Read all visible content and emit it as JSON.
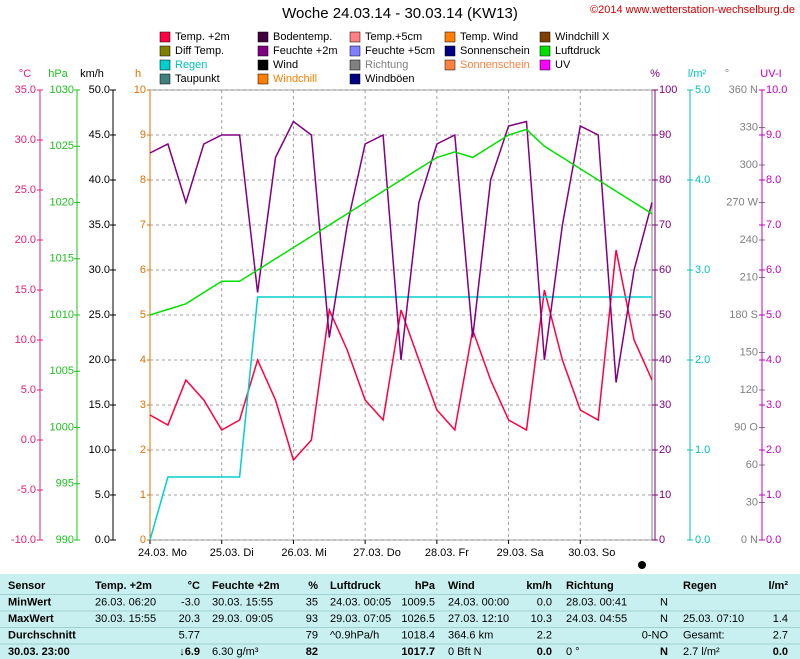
{
  "chart_data": {
    "type": "line",
    "title": "Woche 24.03.14 - 30.03.14 (KW13)",
    "credit": "©2014 www.wetterstation-wechselburg.de",
    "grid": true,
    "x": [
      0,
      6,
      12,
      18,
      24,
      30,
      36,
      42,
      48,
      54,
      60,
      66,
      72,
      78,
      84,
      90,
      96,
      102,
      108,
      114,
      120,
      126,
      132,
      138,
      144,
      150,
      156,
      162,
      168
    ],
    "xlim": [
      0,
      168
    ],
    "xticks": [
      {
        "value": 0,
        "label": "24.03. Mo"
      },
      {
        "value": 24,
        "label": "25.03. Di"
      },
      {
        "value": 48,
        "label": "26.03. Mi"
      },
      {
        "value": 72,
        "label": "27.03. Do"
      },
      {
        "value": 96,
        "label": "28.03. Fr"
      },
      {
        "value": 120,
        "label": "29.03. Sa"
      },
      {
        "value": 144,
        "label": "30.03. So"
      }
    ],
    "axes": [
      {
        "label": "°C",
        "color": "#e0207a",
        "lim": [
          -10,
          35
        ],
        "ticks": [
          {
            "value": 35,
            "label": "35.0"
          },
          {
            "value": 30,
            "label": "30.0"
          },
          {
            "value": 25,
            "label": "25.0"
          },
          {
            "value": 20,
            "label": "20.0"
          },
          {
            "value": 15,
            "label": "15.0"
          },
          {
            "value": 10,
            "label": "10.0"
          },
          {
            "value": 5,
            "label": "5.0"
          },
          {
            "value": 0,
            "label": "0.0"
          },
          {
            "value": -5,
            "label": "-5.0"
          },
          {
            "value": -10,
            "label": "-10.0"
          }
        ]
      },
      {
        "label": "hPa",
        "color": "#20c020",
        "lim": [
          990,
          1030
        ],
        "ticks": [
          1030,
          1025,
          1020,
          1015,
          1010,
          1005,
          1000,
          995,
          990
        ]
      },
      {
        "label": "km/h",
        "color": "#000000",
        "lim": [
          0,
          50
        ],
        "ticks": [
          {
            "value": 50,
            "label": "50.0"
          },
          {
            "value": 45,
            "label": "45.0"
          },
          {
            "value": 40,
            "label": "40.0"
          },
          {
            "value": 35,
            "label": "35.0"
          },
          {
            "value": 30,
            "label": "30.0"
          },
          {
            "value": 25,
            "label": "25.0"
          },
          {
            "value": 20,
            "label": "20.0"
          },
          {
            "value": 15,
            "label": "15.0"
          },
          {
            "value": 10,
            "label": "10.0"
          },
          {
            "value": 5,
            "label": "5.0"
          },
          {
            "value": 0,
            "label": "0.0"
          }
        ]
      },
      {
        "label": "h",
        "color": "#e07000",
        "lim": [
          0,
          10
        ],
        "ticks": [
          10,
          9,
          8,
          7,
          6,
          5,
          4,
          3,
          2,
          1,
          0
        ]
      },
      {
        "label": "%",
        "color": "#800080",
        "lim": [
          0,
          100
        ],
        "ticks": [
          100,
          90,
          80,
          70,
          60,
          50,
          40,
          30,
          20,
          10,
          0
        ]
      },
      {
        "label": "l/m²",
        "color": "#00c0c0",
        "lim": [
          0,
          5
        ],
        "ticks": [
          {
            "value": 5,
            "label": "5.0"
          },
          {
            "value": 4,
            "label": "4.0"
          },
          {
            "value": 3,
            "label": "3.0"
          },
          {
            "value": 2,
            "label": "2.0"
          },
          {
            "value": 1,
            "label": "1.0"
          },
          {
            "value": 0,
            "label": "0.0"
          }
        ]
      },
      {
        "label": "°",
        "color": "#808080",
        "lim": [
          0,
          360
        ],
        "ticks": [
          {
            "value": 360,
            "label": "360 N"
          },
          330,
          300,
          {
            "value": 270,
            "label": "270 W"
          },
          240,
          210,
          {
            "value": 180,
            "label": "180 S"
          },
          150,
          120,
          {
            "value": 90,
            "label": "90 O"
          },
          60,
          30,
          {
            "value": 0,
            "label": "0 N"
          }
        ]
      },
      {
        "label": "UV-I",
        "color": "#c000c0",
        "lim": [
          0,
          10
        ],
        "ticks": [
          {
            "value": 10,
            "label": "10.0"
          },
          {
            "value": 9,
            "label": "9.0"
          },
          {
            "value": 8,
            "label": "8.0"
          },
          {
            "value": 7,
            "label": "7.0"
          },
          {
            "value": 6,
            "label": "6.0"
          },
          {
            "value": 5,
            "label": "5.0"
          },
          {
            "value": 4,
            "label": "4.0"
          },
          {
            "value": 3,
            "label": "3.0"
          },
          {
            "value": 2,
            "label": "2.0"
          },
          {
            "value": 1,
            "label": "1.0"
          },
          {
            "value": 0,
            "label": "0.0"
          }
        ]
      }
    ],
    "series": [
      {
        "name": "Temp. +2m",
        "color": "#ff0040",
        "axis": "°C",
        "values": [
          2.5,
          1.5,
          6,
          4,
          1,
          2,
          8,
          4,
          -2,
          0,
          13,
          9,
          4,
          2,
          13,
          8,
          3,
          1,
          11,
          6,
          2,
          1,
          15,
          8,
          3,
          2,
          19,
          10,
          6
        ]
      },
      {
        "name": "Diff Temp.",
        "color": "#808000"
      },
      {
        "name": "Regen",
        "color": "#00d0d0",
        "text_color": "#00c0c0",
        "axis": "l/m²",
        "values": [
          0,
          0.7,
          0.7,
          0.7,
          0.7,
          0.7,
          2.7,
          2.7,
          2.7,
          2.7,
          2.7,
          2.7,
          2.7,
          2.7,
          2.7,
          2.7,
          2.7,
          2.7,
          2.7,
          2.7,
          2.7,
          2.7,
          2.7,
          2.7,
          2.7,
          2.7,
          2.7,
          2.7,
          2.7
        ]
      },
      {
        "name": "Taupunkt",
        "color": "#408080"
      },
      {
        "name": "Bodentemp.",
        "color": "#400040"
      },
      {
        "name": "Feuchte +2m",
        "color": "#800080",
        "axis": "%",
        "values": [
          86,
          88,
          75,
          88,
          90,
          90,
          55,
          85,
          93,
          90,
          45,
          70,
          88,
          90,
          40,
          75,
          88,
          90,
          45,
          80,
          92,
          93,
          40,
          70,
          92,
          90,
          35,
          60,
          75
        ]
      },
      {
        "name": "Wind",
        "color": "#000000"
      },
      {
        "name": "Windchill",
        "color": "#ff8000",
        "text_color": "#ff8000"
      },
      {
        "name": "Temp.+5cm",
        "color": "#ff8080"
      },
      {
        "name": "Feuchte +5cm",
        "color": "#8080ff"
      },
      {
        "name": "Richtung",
        "color": "#808080",
        "text_color": "#808080"
      },
      {
        "name": "Windböen",
        "color": "#000080"
      },
      {
        "name": "Temp. Wind",
        "color": "#ff8000"
      },
      {
        "name": "Sonnenschein",
        "color": "#000080"
      },
      {
        "name": "Sonnenschein",
        "color": "#ff8040",
        "text_color": "#ff8040"
      },
      {
        "name": "Windchill X",
        "color": "#804000"
      },
      {
        "name": "Luftdruck",
        "color": "#00e000",
        "axis": "hPa",
        "values": [
          1010,
          1010.5,
          1011,
          1012,
          1013,
          1013,
          1014,
          1015,
          1016,
          1017,
          1018,
          1019,
          1020,
          1021,
          1022,
          1023,
          1024,
          1024.5,
          1024,
          1025,
          1026,
          1026.5,
          1025,
          1024,
          1023,
          1022,
          1021,
          1020,
          1019
        ]
      },
      {
        "name": "UV",
        "color": "#ff00ff"
      }
    ]
  },
  "table": {
    "rows": [
      [
        "Sensor",
        "Temp. +2m",
        "°C",
        "Feuchte +2m",
        "%",
        "Luftdruck",
        "hPa",
        "Wind",
        "km/h",
        "Richtung",
        "",
        "Regen",
        "l/m²"
      ],
      [
        "MinWert",
        "26.03.  06:20",
        "-3.0",
        "30.03.  15:55",
        "35",
        "24.03.  00:05",
        "1009.5",
        "24.03.  00:00",
        "0.0",
        "28.03.  00:41",
        "N",
        "",
        ""
      ],
      [
        "MaxWert",
        "30.03.  15:55",
        "20.3",
        "29.03.  09:05",
        "93",
        "29.03.  07:05",
        "1026.5",
        "27.03.  12:10",
        "10.3",
        "24.03.  04:55",
        "N",
        "25.03.  07:10",
        "1.4"
      ],
      [
        "Durchschnitt",
        "",
        "5.77",
        "",
        "79",
        "^0.9hPa/h",
        "1018.4",
        "364.6 km",
        "2.2",
        "",
        "0-NO",
        "Gesamt:",
        "2.7"
      ],
      [
        "30.03. 23:00",
        "",
        "↓6.9",
        "6.30 g/m³",
        "82",
        "",
        "1017.7",
        "0 Bft N",
        "0.0",
        "0 °",
        "N",
        "2.7 l/m²",
        "0.0"
      ]
    ]
  }
}
